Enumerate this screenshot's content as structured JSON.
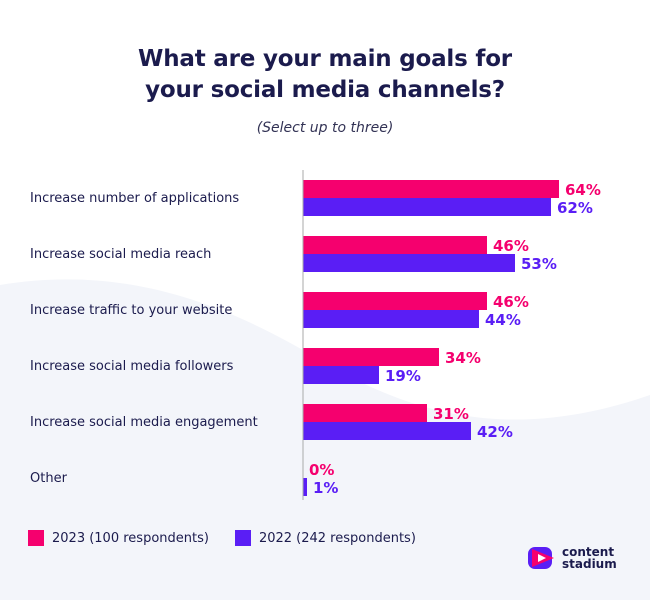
{
  "title_lines": [
    "What are your main goals for",
    "your social media channels?"
  ],
  "subtitle": "(Select up to three)",
  "colors": {
    "series_2023": "#f5006e",
    "series_2022": "#5a1ef5",
    "background_wave": "#f3f5fa",
    "axis": "#aaaaaa"
  },
  "legend": {
    "items": [
      {
        "label": "2023 (100 respondents)",
        "color": "#f5006e"
      },
      {
        "label": "2022 (242 respondents)",
        "color": "#5a1ef5"
      }
    ]
  },
  "logo": {
    "line1": "content",
    "line2": "stadium",
    "icon": "play-icon"
  },
  "chart_data": {
    "type": "bar",
    "orientation": "horizontal",
    "title": "What are your main goals for your social media channels?",
    "subtitle": "(Select up to three)",
    "categories": [
      "Increase number of applications",
      "Increase social media reach",
      "Increase traffic to your website",
      "Increase social media followers",
      "Increase social media engagement",
      "Other"
    ],
    "series": [
      {
        "name": "2023 (100 respondents)",
        "values": [
          64,
          46,
          46,
          34,
          31,
          0
        ],
        "labels": [
          "64%",
          "46%",
          "46%",
          "34%",
          "31%",
          "0%"
        ]
      },
      {
        "name": "2022 (242 respondents)",
        "values": [
          62,
          53,
          44,
          19,
          42,
          1
        ],
        "labels": [
          "62%",
          "53%",
          "44%",
          "19%",
          "42%",
          "1%"
        ]
      }
    ],
    "xlim": [
      0,
      64
    ],
    "unit": "%",
    "grid": false,
    "legend_position": "bottom-left"
  }
}
